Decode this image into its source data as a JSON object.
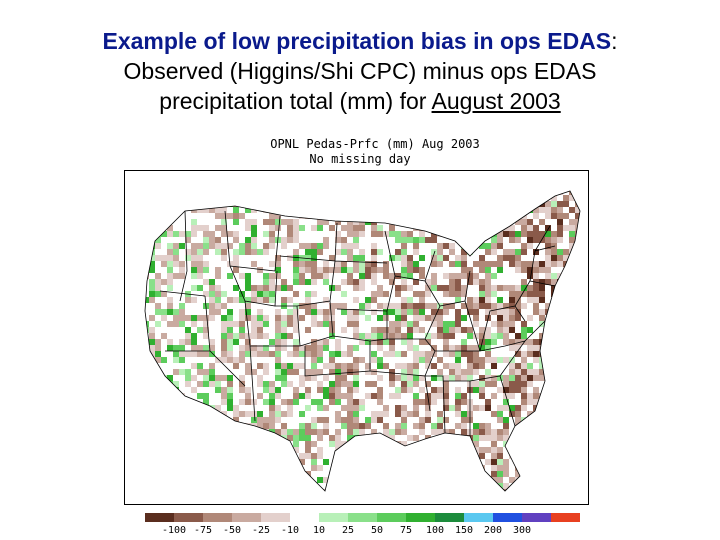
{
  "title": {
    "line1_bold": "Example of low precipitation bias in ops EDAS",
    "line1_colon": ":",
    "line2": "Observed (Higgins/Shi CPC) minus ops EDAS",
    "line3_prefix": "precipitation total (mm) for ",
    "line3_underlined": "August 2003"
  },
  "map": {
    "header_line1": "OPNL Pedas-Prfc (mm) Aug 2003",
    "header_line2": "No missing day"
  },
  "legend": {
    "colors": [
      "#5a2d1e",
      "#8a5a4a",
      "#b08878",
      "#c9aaa0",
      "#e3d0cc",
      "#ffffff",
      "#b8f0b8",
      "#8ae08a",
      "#5ccc5c",
      "#30b030",
      "#1c8c3c",
      "#5ac8f0",
      "#2050e0",
      "#6040c0",
      "#e84020"
    ],
    "labels": [
      "-100",
      "-75",
      "-50",
      "-25",
      "-10",
      "10",
      "25",
      "50",
      "75",
      "100",
      "150",
      "200",
      "300"
    ]
  }
}
